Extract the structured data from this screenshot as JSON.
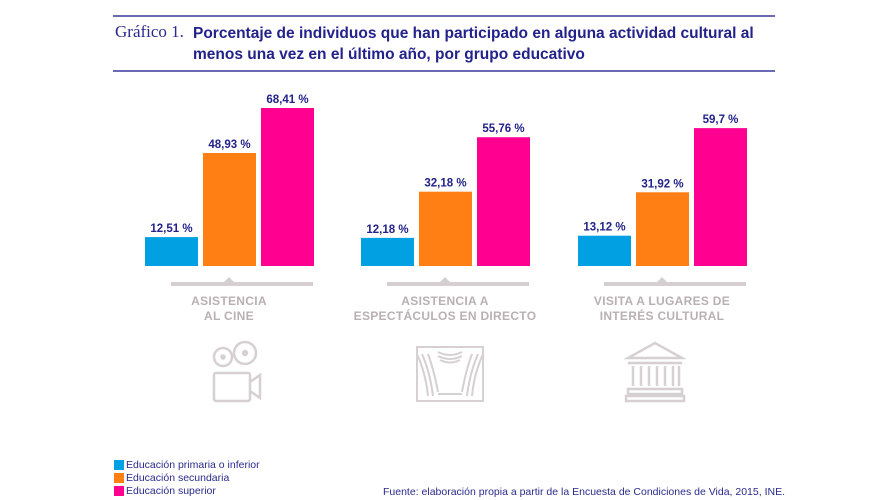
{
  "header": {
    "label": "Gráfico 1.",
    "title": "Porcentaje de individuos que han participado en alguna actividad cultural al menos una vez en el último año, por grupo educativo"
  },
  "chart_data": {
    "type": "bar",
    "title": "Porcentaje de individuos que han participado en alguna actividad cultural al menos una vez en el último año, por grupo educativo",
    "xlabel": "",
    "ylabel": "",
    "ylim": [
      0,
      70
    ],
    "grid": false,
    "legend_position": "bottom-left",
    "categories": [
      "ASISTENCIA AL CINE",
      "ASISTENCIA A ESPECTÁCULOS EN DIRECTO",
      "VISITA A LUGARES DE INTERÉS CULTURAL"
    ],
    "category_lines": [
      [
        "ASISTENCIA",
        "AL CINE"
      ],
      [
        "ASISTENCIA A",
        "ESPECTÁCULOS EN DIRECTO"
      ],
      [
        "VISITA A LUGARES DE",
        "INTERÉS CULTURAL"
      ]
    ],
    "category_icons": [
      "film-camera-icon",
      "theater-stage-icon",
      "museum-building-icon"
    ],
    "series": [
      {
        "name": "Educación primaria o inferior",
        "color": "#00a0e3",
        "values": [
          12.51,
          12.18,
          13.12
        ],
        "labels": [
          "12,51 %",
          "12,18 %",
          "13,12 %"
        ]
      },
      {
        "name": "Educación secundaria",
        "color": "#ff7f14",
        "values": [
          48.93,
          32.18,
          31.92
        ],
        "labels": [
          "48,93 %",
          "32,18 %",
          "31,92 %"
        ]
      },
      {
        "name": "Educación superior",
        "color": "#ff0090",
        "values": [
          68.41,
          55.76,
          59.7
        ],
        "labels": [
          "68,41 %",
          "55,76 %",
          "59,7 %"
        ]
      }
    ]
  },
  "legend": {
    "items": [
      {
        "label": "Educación primaria o inferior",
        "color": "#00a0e3"
      },
      {
        "label": "Educación secundaria",
        "color": "#ff7f14"
      },
      {
        "label": "Educación superior",
        "color": "#ff0090"
      }
    ]
  },
  "source": "Fuente: elaboración propia a partir de la Encuesta de Condiciones de Vida, 2015, INE."
}
